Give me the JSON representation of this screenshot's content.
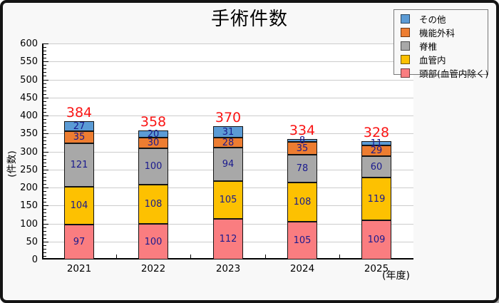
{
  "window": {
    "background": "#f8f8f8",
    "border_color": "#141414"
  },
  "chart_data": {
    "type": "bar",
    "variant": "stacked-vertical",
    "title": "手術件数",
    "ylabel": "(件数)",
    "xlabel": "(年度)",
    "categories": [
      "2021",
      "2022",
      "2023",
      "2024",
      "2025"
    ],
    "series": [
      {
        "name": "頭部(血管内除く)",
        "color": "#fa7d80",
        "values": [
          97,
          100,
          112,
          105,
          109
        ]
      },
      {
        "name": "血管内",
        "color": "#fdc101",
        "values": [
          104,
          108,
          105,
          108,
          119
        ]
      },
      {
        "name": "脊椎",
        "color": "#a8a8a8",
        "values": [
          121,
          100,
          94,
          78,
          60
        ]
      },
      {
        "name": "機能外科",
        "color": "#ed7d31",
        "values": [
          35,
          30,
          28,
          35,
          29
        ]
      },
      {
        "name": "その他",
        "color": "#5b9bd5",
        "values": [
          27,
          20,
          31,
          8,
          11
        ]
      }
    ],
    "totals": [
      384,
      358,
      370,
      334,
      328
    ],
    "ylim": [
      0,
      600
    ],
    "ytick_step": 50,
    "minor_tick_step": 10,
    "grid": true,
    "grid_color": "#cccccc",
    "legend_position": "top-right",
    "legend_order_top_to_bottom": [
      "その他",
      "機能外科",
      "脊椎",
      "血管内",
      "頭部(血管内除く)"
    ],
    "value_label_color": "#1a1a8e",
    "total_label_color": "#fa1414"
  }
}
